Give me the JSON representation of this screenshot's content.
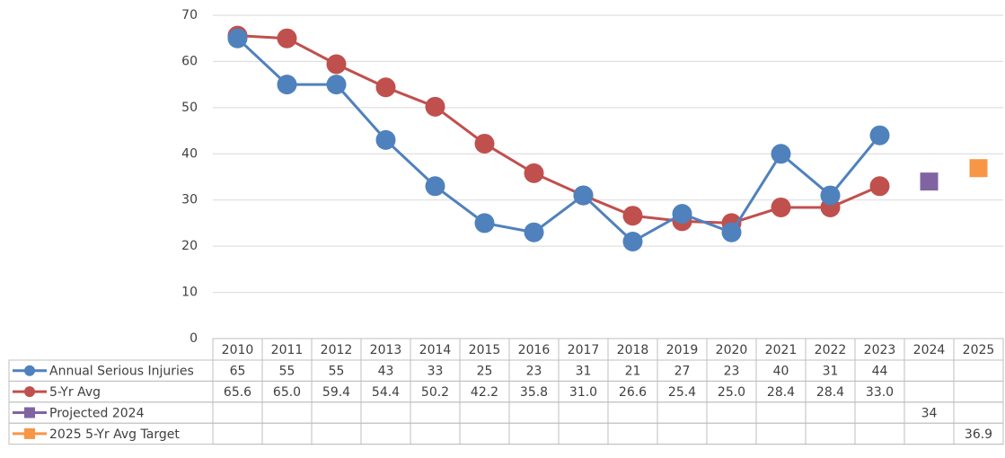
{
  "chart_data": {
    "type": "line",
    "categories": [
      "2010",
      "2011",
      "2012",
      "2013",
      "2014",
      "2015",
      "2016",
      "2017",
      "2018",
      "2019",
      "2020",
      "2021",
      "2022",
      "2023",
      "2024",
      "2025"
    ],
    "series": [
      {
        "name": "Annual Serious Injuries",
        "color": "#4f81bd",
        "marker": "circle",
        "values": [
          65,
          55,
          55,
          43,
          33,
          25,
          23,
          31,
          21,
          27,
          23,
          40,
          31,
          44,
          null,
          null
        ]
      },
      {
        "name": "5-Yr Avg",
        "color": "#c0504d",
        "marker": "circle",
        "values": [
          65.6,
          65.0,
          59.4,
          54.4,
          50.2,
          42.2,
          35.8,
          31.0,
          26.6,
          25.4,
          25.0,
          28.4,
          28.4,
          33.0,
          null,
          null
        ],
        "value_labels": [
          "65.6",
          "65.0",
          "59.4",
          "54.4",
          "50.2",
          "42.2",
          "35.8",
          "31.0",
          "26.6",
          "25.4",
          "25.0",
          "28.4",
          "28.4",
          "33.0",
          null,
          null
        ]
      },
      {
        "name": "Projected 2024",
        "color": "#8064a2",
        "marker": "square",
        "values": [
          null,
          null,
          null,
          null,
          null,
          null,
          null,
          null,
          null,
          null,
          null,
          null,
          null,
          null,
          34,
          null
        ]
      },
      {
        "name": "2025 5-Yr Avg Target",
        "color": "#f79646",
        "marker": "square",
        "values": [
          null,
          null,
          null,
          null,
          null,
          null,
          null,
          null,
          null,
          null,
          null,
          null,
          null,
          null,
          null,
          36.9
        ]
      }
    ],
    "ylim": [
      0,
      70
    ],
    "yticks": [
      0,
      10,
      20,
      30,
      40,
      50,
      60,
      70
    ],
    "grid": true
  }
}
